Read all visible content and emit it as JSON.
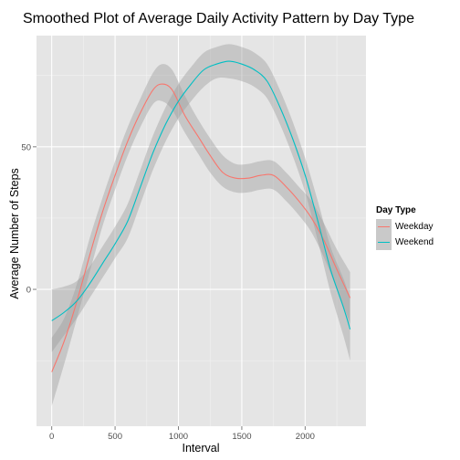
{
  "chart_data": {
    "type": "line",
    "title": "Smoothed Plot of Average Daily Activity Pattern by Day Type",
    "xlabel": "Interval",
    "ylabel": "Average Number of Steps",
    "xlim": [
      -120,
      2480
    ],
    "ylim": [
      -48,
      89
    ],
    "x_ticks": [
      0,
      500,
      1000,
      1500,
      2000
    ],
    "y_ticks": [
      0,
      50
    ],
    "grid": true,
    "legend_title": "Day Type",
    "legend_placement": "right",
    "colors": {
      "panel": "#e5e5e5",
      "grid_major": "#ffffff",
      "grid_minor": "#f2f2f2",
      "band": "#999999",
      "legend_key": "#c9c9c9"
    },
    "series": [
      {
        "name": "Weekday",
        "color": "#f8766d",
        "points": [
          {
            "x": 0,
            "y": -29,
            "lo": -41,
            "hi": -17
          },
          {
            "x": 100,
            "y": -18,
            "lo": -26,
            "hi": -10
          },
          {
            "x": 200,
            "y": -4,
            "lo": -10,
            "hi": 2
          },
          {
            "x": 300,
            "y": 12,
            "lo": 6,
            "hi": 18
          },
          {
            "x": 400,
            "y": 27,
            "lo": 22,
            "hi": 32
          },
          {
            "x": 500,
            "y": 40,
            "lo": 35,
            "hi": 45
          },
          {
            "x": 600,
            "y": 52,
            "lo": 47,
            "hi": 57
          },
          {
            "x": 700,
            "y": 62,
            "lo": 57,
            "hi": 67
          },
          {
            "x": 800,
            "y": 70,
            "lo": 65,
            "hi": 76
          },
          {
            "x": 870,
            "y": 72,
            "lo": 66,
            "hi": 79
          },
          {
            "x": 950,
            "y": 70,
            "lo": 63,
            "hi": 77
          },
          {
            "x": 1050,
            "y": 61,
            "lo": 55,
            "hi": 68
          },
          {
            "x": 1150,
            "y": 54,
            "lo": 48,
            "hi": 60
          },
          {
            "x": 1250,
            "y": 47,
            "lo": 41,
            "hi": 53
          },
          {
            "x": 1350,
            "y": 41,
            "lo": 36,
            "hi": 47
          },
          {
            "x": 1450,
            "y": 39,
            "lo": 34,
            "hi": 44
          },
          {
            "x": 1550,
            "y": 39,
            "lo": 34,
            "hi": 44
          },
          {
            "x": 1650,
            "y": 40,
            "lo": 35,
            "hi": 45
          },
          {
            "x": 1750,
            "y": 40,
            "lo": 35,
            "hi": 45
          },
          {
            "x": 1850,
            "y": 36,
            "lo": 31,
            "hi": 41
          },
          {
            "x": 1950,
            "y": 31,
            "lo": 26,
            "hi": 36
          },
          {
            "x": 2050,
            "y": 25,
            "lo": 20,
            "hi": 31
          },
          {
            "x": 2150,
            "y": 17,
            "lo": 11,
            "hi": 23
          },
          {
            "x": 2250,
            "y": 7,
            "lo": 0,
            "hi": 14
          },
          {
            "x": 2355,
            "y": -3,
            "lo": -12,
            "hi": 6
          }
        ]
      },
      {
        "name": "Weekend",
        "color": "#00bfc4",
        "points": [
          {
            "x": 0,
            "y": -11,
            "lo": -22,
            "hi": 0
          },
          {
            "x": 100,
            "y": -8,
            "lo": -16,
            "hi": 1
          },
          {
            "x": 200,
            "y": -4,
            "lo": -10,
            "hi": 3
          },
          {
            "x": 300,
            "y": 2,
            "lo": -3,
            "hi": 8
          },
          {
            "x": 400,
            "y": 9,
            "lo": 4,
            "hi": 15
          },
          {
            "x": 500,
            "y": 16,
            "lo": 11,
            "hi": 22
          },
          {
            "x": 600,
            "y": 24,
            "lo": 18,
            "hi": 30
          },
          {
            "x": 700,
            "y": 36,
            "lo": 30,
            "hi": 42
          },
          {
            "x": 800,
            "y": 48,
            "lo": 42,
            "hi": 54
          },
          {
            "x": 900,
            "y": 58,
            "lo": 52,
            "hi": 64
          },
          {
            "x": 1000,
            "y": 66,
            "lo": 60,
            "hi": 72
          },
          {
            "x": 1100,
            "y": 72,
            "lo": 66,
            "hi": 78
          },
          {
            "x": 1200,
            "y": 77,
            "lo": 71,
            "hi": 83
          },
          {
            "x": 1300,
            "y": 79,
            "lo": 74,
            "hi": 85
          },
          {
            "x": 1400,
            "y": 80,
            "lo": 74,
            "hi": 86
          },
          {
            "x": 1500,
            "y": 79,
            "lo": 73,
            "hi": 85
          },
          {
            "x": 1600,
            "y": 77,
            "lo": 71,
            "hi": 83
          },
          {
            "x": 1700,
            "y": 73,
            "lo": 67,
            "hi": 79
          },
          {
            "x": 1800,
            "y": 64,
            "lo": 58,
            "hi": 70
          },
          {
            "x": 1900,
            "y": 53,
            "lo": 47,
            "hi": 59
          },
          {
            "x": 2000,
            "y": 40,
            "lo": 34,
            "hi": 46
          },
          {
            "x": 2100,
            "y": 24,
            "lo": 17,
            "hi": 31
          },
          {
            "x": 2200,
            "y": 7,
            "lo": -1,
            "hi": 15
          },
          {
            "x": 2300,
            "y": -6,
            "lo": -16,
            "hi": 4
          },
          {
            "x": 2355,
            "y": -14,
            "lo": -25,
            "hi": -3
          }
        ]
      }
    ]
  }
}
